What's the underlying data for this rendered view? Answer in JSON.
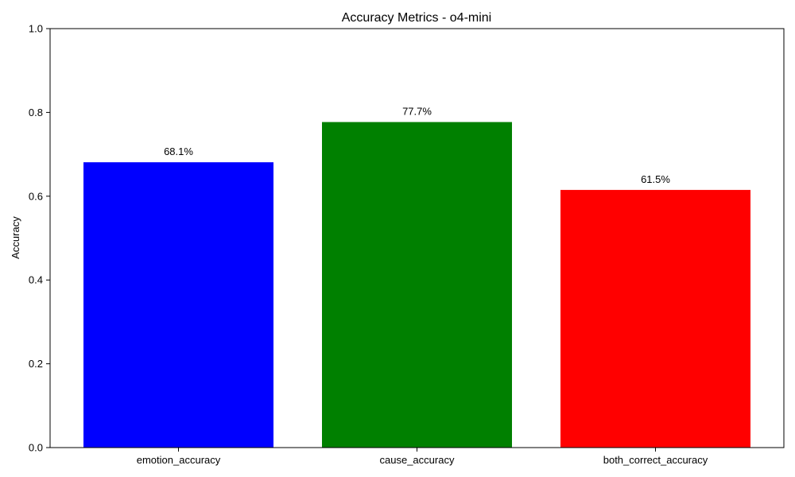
{
  "chart_data": {
    "type": "bar",
    "title": "Accuracy Metrics - o4-mini",
    "xlabel": "",
    "ylabel": "Accuracy",
    "categories": [
      "emotion_accuracy",
      "cause_accuracy",
      "both_correct_accuracy"
    ],
    "values": [
      0.681,
      0.777,
      0.615
    ],
    "data_labels": [
      "68.1%",
      "77.7%",
      "61.5%"
    ],
    "colors": [
      "#0000ff",
      "#008000",
      "#ff0000"
    ],
    "ylim": [
      0,
      1.0
    ],
    "yticks": [
      0.0,
      0.2,
      0.4,
      0.6,
      0.8,
      1.0
    ],
    "ytick_labels": [
      "0.0",
      "0.2",
      "0.4",
      "0.6",
      "0.8",
      "1.0"
    ],
    "grid": false,
    "legend": "none"
  }
}
